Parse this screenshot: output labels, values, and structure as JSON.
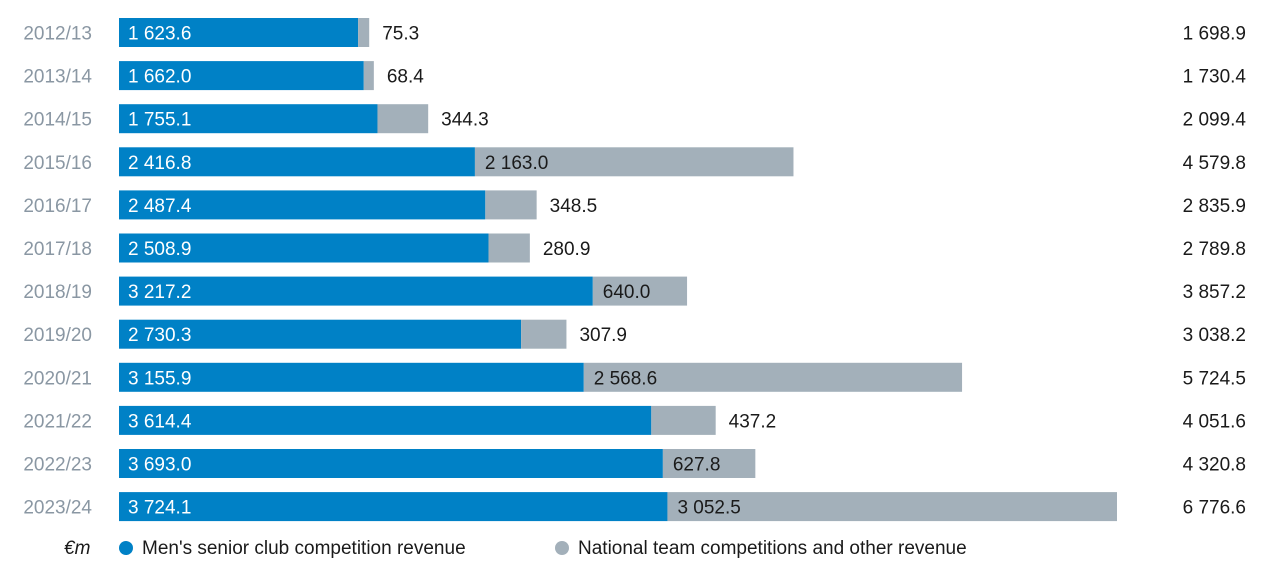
{
  "colors": {
    "club": "#0081c6",
    "other": "#a3b0ba",
    "season_text": "#8a97a3"
  },
  "legend": {
    "unit": "€m",
    "items": [
      {
        "label": "Men's senior club competition revenue",
        "color": "#0081c6"
      },
      {
        "label": "National team competitions and other revenue",
        "color": "#a3b0ba"
      }
    ]
  },
  "chart_data": {
    "type": "bar",
    "orientation": "horizontal",
    "stacked": true,
    "categories": [
      "2012/13",
      "2013/14",
      "2014/15",
      "2015/16",
      "2016/17",
      "2017/18",
      "2018/19",
      "2019/20",
      "2020/21",
      "2021/22",
      "2022/23",
      "2023/24"
    ],
    "series": [
      {
        "name": "Men's senior club competition revenue",
        "values": [
          1623.6,
          1662.0,
          1755.1,
          2416.8,
          2487.4,
          2508.9,
          3217.2,
          2730.3,
          3155.9,
          3614.4,
          3693.0,
          3724.1
        ]
      },
      {
        "name": "National team competitions and other revenue",
        "values": [
          75.3,
          68.4,
          344.3,
          2163.0,
          348.5,
          280.9,
          640.0,
          307.9,
          2568.6,
          437.2,
          627.8,
          3052.5
        ]
      }
    ],
    "labels": {
      "club": [
        "1 623.6",
        "1 662.0",
        "1 755.1",
        "2 416.8",
        "2 487.4",
        "2 508.9",
        "3 217.2",
        "2 730.3",
        "3 155.9",
        "3 614.4",
        "3 693.0",
        "3 724.1"
      ],
      "other": [
        "75.3",
        "68.4",
        "344.3",
        "2 163.0",
        "348.5",
        "280.9",
        "640.0",
        "307.9",
        "2 568.6",
        "437.2",
        "627.8",
        "3 052.5"
      ],
      "total": [
        "1 698.9",
        "1 730.4",
        "2 099.4",
        "4 579.8",
        "2 835.9",
        "2 789.8",
        "3 857.2",
        "3 038.2",
        "5 724.5",
        "4 051.6",
        "4 320.8",
        "6 776.6"
      ]
    },
    "xlim": [
      0,
      6776.6
    ],
    "grid": false,
    "legend_position": "bottom"
  }
}
